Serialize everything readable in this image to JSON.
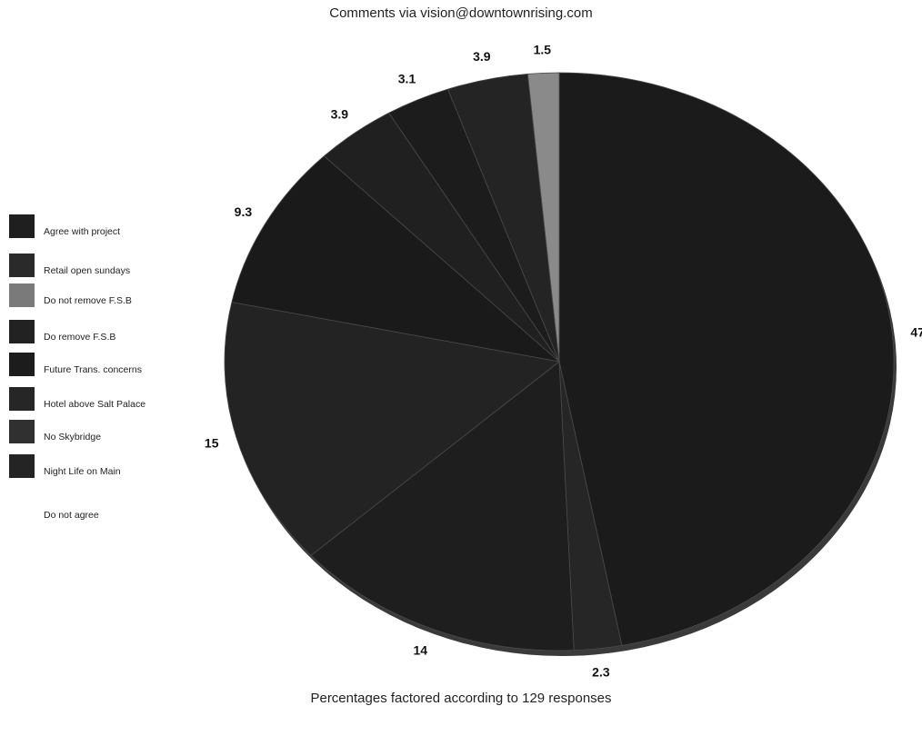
{
  "header": {
    "title": "Comments via vision@downtownrising.com"
  },
  "footer": {
    "note": "Percentages factored according to 129 responses"
  },
  "chart_data": {
    "type": "pie",
    "title": "Comments via vision@downtownrising.com",
    "subtitle": "Percentages factored according to 129 responses",
    "legend_position": "left",
    "slices": [
      {
        "label": "Agree with project",
        "value": 47,
        "value_label": "47",
        "color": "#1b1b1b"
      },
      {
        "label": "Retail open sundays",
        "value": 2.3,
        "value_label": "2.3",
        "color": "#262626"
      },
      {
        "label": "Do not remove F.S.B",
        "value": 14,
        "value_label": "14",
        "color": "#1e1e1e"
      },
      {
        "label": "Do remove F.S.B",
        "value": 15,
        "value_label": "15",
        "color": "#232323"
      },
      {
        "label": "Future Trans. concerns",
        "value": 9.3,
        "value_label": "9.3",
        "color": "#1a1a1a"
      },
      {
        "label": "Hotel above Salt Palace",
        "value": 3.9,
        "value_label": "3.9",
        "color": "#202020"
      },
      {
        "label": "No Skybridge",
        "value": 3.1,
        "value_label": "3.1",
        "color": "#1c1c1c"
      },
      {
        "label": "Night Life on Main",
        "value": 3.9,
        "value_label": "3.9",
        "color": "#242424"
      },
      {
        "label": "Do not agree",
        "value": 1.5,
        "value_label": "1.5",
        "color": "#8a8a8a"
      }
    ]
  },
  "legend": {
    "items": [
      {
        "label": "Agree with project",
        "color": "#1f1f1f",
        "has_swatch": true
      },
      {
        "label": "Retail open sundays",
        "color": "#2a2a2a",
        "has_swatch": true
      },
      {
        "label": "Do not remove F.S.B",
        "color": "#7a7a7a",
        "has_swatch": true
      },
      {
        "label": "Do remove F.S.B",
        "color": "#222222",
        "has_swatch": true
      },
      {
        "label": "Future Trans. concerns",
        "color": "#1c1c1c",
        "has_swatch": true
      },
      {
        "label": "Hotel above Salt Palace",
        "color": "#262626",
        "has_swatch": true
      },
      {
        "label": "No Skybridge",
        "color": "#303030",
        "has_swatch": true
      },
      {
        "label": "Night Life on Main",
        "color": "#242424",
        "has_swatch": true
      },
      {
        "label": "Do not agree",
        "color": "#ffffff",
        "has_swatch": false
      }
    ]
  }
}
